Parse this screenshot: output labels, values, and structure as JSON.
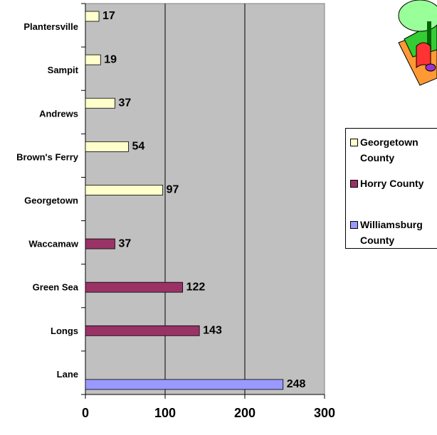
{
  "chart_data": {
    "type": "bar",
    "orientation": "horizontal",
    "categories": [
      "Plantersville",
      "Sampit",
      "Andrews",
      "Brown's Ferry",
      "Georgetown",
      "Waccamaw",
      "Green Sea",
      "Longs",
      "Lane"
    ],
    "series": [
      {
        "name": "Georgetown County",
        "color": "#ffffcc",
        "values": [
          17,
          19,
          37,
          54,
          97,
          null,
          null,
          null,
          null
        ]
      },
      {
        "name": "Horry County",
        "color": "#993366",
        "values": [
          null,
          null,
          null,
          null,
          null,
          37,
          122,
          143,
          null
        ]
      },
      {
        "name": "Williamsburg County",
        "color": "#9999ff",
        "values": [
          null,
          null,
          null,
          null,
          null,
          null,
          null,
          null,
          248
        ]
      }
    ],
    "xlim": [
      0,
      300
    ],
    "xticks": [
      0,
      100,
      200,
      300
    ],
    "grid": true
  }
}
